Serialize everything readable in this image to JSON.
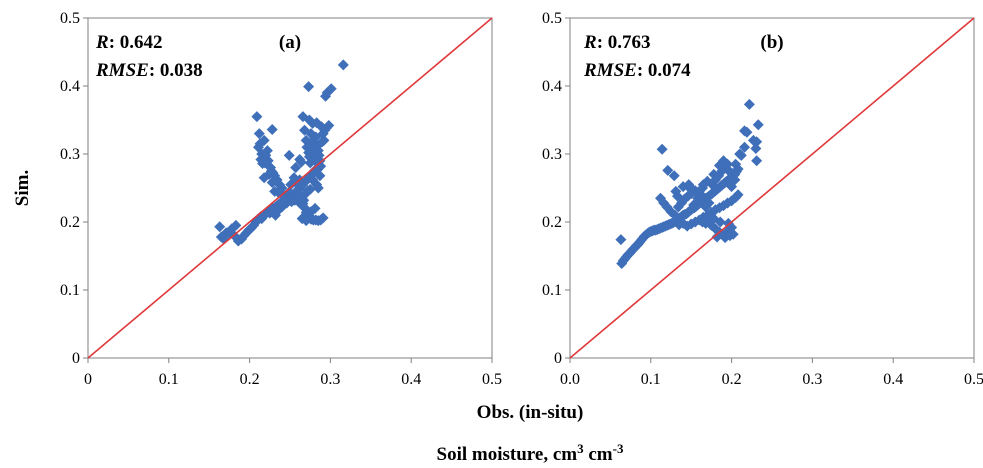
{
  "figure": {
    "y_axis_label": "Sim.",
    "x_axis_label": "Obs. (in-situ)",
    "caption": {
      "prefix": "Soil moisture, cm",
      "exp1": "3",
      "mid": " cm",
      "exp2": "-3"
    }
  },
  "colors": {
    "marker": "#3f6fb9",
    "one_to_one_line": "#e0393b",
    "axis": "#808080"
  },
  "chart_data": [
    {
      "type": "scatter",
      "panel_label": "(a)",
      "stats": {
        "r_label": "R",
        "r_value": ": 0.642",
        "rmse_label": "RMSE",
        "rmse_value": ": 0.038"
      },
      "xlim": [
        0,
        0.5
      ],
      "ylim": [
        0,
        0.5
      ],
      "x_ticks": [
        "0",
        "0.1",
        "0.2",
        "0.3",
        "0.4",
        "0.5"
      ],
      "y_ticks": [
        "0",
        "0.1",
        "0.2",
        "0.3",
        "0.4",
        "0.5"
      ],
      "grid": false,
      "reference_line": "1:1",
      "points": [
        [
          0.163,
          0.193
        ],
        [
          0.165,
          0.178
        ],
        [
          0.168,
          0.175
        ],
        [
          0.171,
          0.184
        ],
        [
          0.175,
          0.183
        ],
        [
          0.178,
          0.19
        ],
        [
          0.181,
          0.18
        ],
        [
          0.183,
          0.195
        ],
        [
          0.186,
          0.172
        ],
        [
          0.19,
          0.175
        ],
        [
          0.193,
          0.18
        ],
        [
          0.196,
          0.184
        ],
        [
          0.199,
          0.188
        ],
        [
          0.202,
          0.191
        ],
        [
          0.205,
          0.195
        ],
        [
          0.208,
          0.2
        ],
        [
          0.211,
          0.205
        ],
        [
          0.214,
          0.208
        ],
        [
          0.217,
          0.21
        ],
        [
          0.22,
          0.212
        ],
        [
          0.223,
          0.215
        ],
        [
          0.226,
          0.218
        ],
        [
          0.229,
          0.22
        ],
        [
          0.232,
          0.222
        ],
        [
          0.235,
          0.225
        ],
        [
          0.238,
          0.228
        ],
        [
          0.241,
          0.23
        ],
        [
          0.244,
          0.233
        ],
        [
          0.247,
          0.236
        ],
        [
          0.25,
          0.238
        ],
        [
          0.253,
          0.24
        ],
        [
          0.256,
          0.243
        ],
        [
          0.259,
          0.246
        ],
        [
          0.262,
          0.25
        ],
        [
          0.265,
          0.254
        ],
        [
          0.268,
          0.258
        ],
        [
          0.271,
          0.262
        ],
        [
          0.274,
          0.266
        ],
        [
          0.277,
          0.27
        ],
        [
          0.28,
          0.275
        ],
        [
          0.215,
          0.205
        ],
        [
          0.225,
          0.213
        ],
        [
          0.232,
          0.21
        ],
        [
          0.24,
          0.222
        ],
        [
          0.246,
          0.228
        ],
        [
          0.252,
          0.23
        ],
        [
          0.258,
          0.234
        ],
        [
          0.262,
          0.228
        ],
        [
          0.268,
          0.24
        ],
        [
          0.272,
          0.246
        ],
        [
          0.243,
          0.238
        ],
        [
          0.249,
          0.244
        ],
        [
          0.256,
          0.232
        ],
        [
          0.261,
          0.238
        ],
        [
          0.267,
          0.232
        ],
        [
          0.236,
          0.218
        ],
        [
          0.209,
          0.355
        ],
        [
          0.212,
          0.33
        ],
        [
          0.213,
          0.315
        ],
        [
          0.215,
          0.3
        ],
        [
          0.216,
          0.286
        ],
        [
          0.218,
          0.32
        ],
        [
          0.22,
          0.298
        ],
        [
          0.222,
          0.305
        ],
        [
          0.223,
          0.29
        ],
        [
          0.226,
          0.28
        ],
        [
          0.227,
          0.275
        ],
        [
          0.229,
          0.272
        ],
        [
          0.231,
          0.268
        ],
        [
          0.234,
          0.262
        ],
        [
          0.237,
          0.255
        ],
        [
          0.24,
          0.25
        ],
        [
          0.211,
          0.31
        ],
        [
          0.214,
          0.292
        ],
        [
          0.219,
          0.287
        ],
        [
          0.224,
          0.27
        ],
        [
          0.231,
          0.245
        ],
        [
          0.236,
          0.243
        ],
        [
          0.228,
          0.258
        ],
        [
          0.218,
          0.265
        ],
        [
          0.228,
          0.336
        ],
        [
          0.249,
          0.298
        ],
        [
          0.257,
          0.28
        ],
        [
          0.262,
          0.292
        ],
        [
          0.264,
          0.288
        ],
        [
          0.266,
          0.355
        ],
        [
          0.268,
          0.335
        ],
        [
          0.27,
          0.32
        ],
        [
          0.271,
          0.31
        ],
        [
          0.273,
          0.302
        ],
        [
          0.274,
          0.296
        ],
        [
          0.276,
          0.33
        ],
        [
          0.277,
          0.318
        ],
        [
          0.279,
          0.305
        ],
        [
          0.28,
          0.298
        ],
        [
          0.281,
          0.29
        ],
        [
          0.282,
          0.325
        ],
        [
          0.284,
          0.312
        ],
        [
          0.285,
          0.305
        ],
        [
          0.286,
          0.298
        ],
        [
          0.287,
          0.29
        ],
        [
          0.288,
          0.282
        ],
        [
          0.289,
          0.34
        ],
        [
          0.291,
          0.33
        ],
        [
          0.292,
          0.32
        ],
        [
          0.293,
          0.335
        ],
        [
          0.295,
          0.338
        ],
        [
          0.278,
          0.345
        ],
        [
          0.274,
          0.35
        ],
        [
          0.283,
          0.346
        ],
        [
          0.29,
          0.318
        ],
        [
          0.275,
          0.287
        ],
        [
          0.264,
          0.236
        ],
        [
          0.266,
          0.227
        ],
        [
          0.268,
          0.221
        ],
        [
          0.27,
          0.214
        ],
        [
          0.272,
          0.21
        ],
        [
          0.274,
          0.207
        ],
        [
          0.276,
          0.204
        ],
        [
          0.279,
          0.203
        ],
        [
          0.282,
          0.203
        ],
        [
          0.285,
          0.202
        ],
        [
          0.288,
          0.203
        ],
        [
          0.291,
          0.206
        ],
        [
          0.265,
          0.205
        ],
        [
          0.27,
          0.202
        ],
        [
          0.276,
          0.215
        ],
        [
          0.281,
          0.22
        ],
        [
          0.294,
          0.385
        ],
        [
          0.296,
          0.39
        ],
        [
          0.301,
          0.396
        ],
        [
          0.273,
          0.399
        ],
        [
          0.316,
          0.431
        ],
        [
          0.298,
          0.342
        ],
        [
          0.255,
          0.265
        ],
        [
          0.251,
          0.255
        ],
        [
          0.284,
          0.277
        ],
        [
          0.287,
          0.268
        ],
        [
          0.278,
          0.262
        ],
        [
          0.283,
          0.255
        ],
        [
          0.275,
          0.248
        ],
        [
          0.285,
          0.25
        ],
        [
          0.262,
          0.262
        ],
        [
          0.257,
          0.258
        ]
      ]
    },
    {
      "type": "scatter",
      "panel_label": "(b)",
      "stats": {
        "r_label": "R",
        "r_value": ": 0.763",
        "rmse_label": "RMSE",
        "rmse_value": ": 0.074"
      },
      "xlim": [
        0,
        0.5
      ],
      "ylim": [
        0,
        0.5
      ],
      "x_ticks": [
        "0.0",
        "0.1",
        "0.2",
        "0.3",
        "0.4",
        "0.5"
      ],
      "y_ticks": [
        "0",
        "0.1",
        "0.2",
        "0.3",
        "0.4",
        "0.5"
      ],
      "grid": false,
      "reference_line": "1:1",
      "points": [
        [
          0.063,
          0.174
        ],
        [
          0.064,
          0.139
        ],
        [
          0.066,
          0.143
        ],
        [
          0.068,
          0.146
        ],
        [
          0.07,
          0.149
        ],
        [
          0.072,
          0.152
        ],
        [
          0.074,
          0.154
        ],
        [
          0.076,
          0.157
        ],
        [
          0.078,
          0.16
        ],
        [
          0.08,
          0.162
        ],
        [
          0.082,
          0.165
        ],
        [
          0.084,
          0.167
        ],
        [
          0.086,
          0.17
        ],
        [
          0.088,
          0.173
        ],
        [
          0.09,
          0.176
        ],
        [
          0.092,
          0.179
        ],
        [
          0.094,
          0.181
        ],
        [
          0.096,
          0.183
        ],
        [
          0.098,
          0.185
        ],
        [
          0.1,
          0.186
        ],
        [
          0.102,
          0.187
        ],
        [
          0.104,
          0.188
        ],
        [
          0.106,
          0.188
        ],
        [
          0.108,
          0.189
        ],
        [
          0.11,
          0.19
        ],
        [
          0.112,
          0.191
        ],
        [
          0.114,
          0.192
        ],
        [
          0.116,
          0.193
        ],
        [
          0.118,
          0.194
        ],
        [
          0.12,
          0.195
        ],
        [
          0.122,
          0.196
        ],
        [
          0.124,
          0.197
        ],
        [
          0.126,
          0.198
        ],
        [
          0.128,
          0.199
        ],
        [
          0.13,
          0.201
        ],
        [
          0.132,
          0.203
        ],
        [
          0.134,
          0.205
        ],
        [
          0.136,
          0.206
        ],
        [
          0.138,
          0.208
        ],
        [
          0.14,
          0.21
        ],
        [
          0.142,
          0.211
        ],
        [
          0.144,
          0.212
        ],
        [
          0.146,
          0.214
        ],
        [
          0.148,
          0.216
        ],
        [
          0.15,
          0.218
        ],
        [
          0.152,
          0.22
        ],
        [
          0.154,
          0.221
        ],
        [
          0.156,
          0.223
        ],
        [
          0.158,
          0.225
        ],
        [
          0.16,
          0.227
        ],
        [
          0.162,
          0.229
        ],
        [
          0.164,
          0.231
        ],
        [
          0.166,
          0.233
        ],
        [
          0.168,
          0.235
        ],
        [
          0.17,
          0.236
        ],
        [
          0.172,
          0.238
        ],
        [
          0.174,
          0.24
        ],
        [
          0.176,
          0.242
        ],
        [
          0.178,
          0.244
        ],
        [
          0.18,
          0.246
        ],
        [
          0.182,
          0.248
        ],
        [
          0.184,
          0.25
        ],
        [
          0.186,
          0.252
        ],
        [
          0.188,
          0.254
        ],
        [
          0.19,
          0.256
        ],
        [
          0.192,
          0.258
        ],
        [
          0.194,
          0.26
        ],
        [
          0.196,
          0.262
        ],
        [
          0.198,
          0.264
        ],
        [
          0.2,
          0.266
        ],
        [
          0.202,
          0.268
        ],
        [
          0.204,
          0.27
        ],
        [
          0.112,
          0.235
        ],
        [
          0.116,
          0.228
        ],
        [
          0.12,
          0.222
        ],
        [
          0.125,
          0.215
        ],
        [
          0.13,
          0.21
        ],
        [
          0.134,
          0.222
        ],
        [
          0.138,
          0.228
        ],
        [
          0.142,
          0.234
        ],
        [
          0.146,
          0.238
        ],
        [
          0.15,
          0.242
        ],
        [
          0.155,
          0.246
        ],
        [
          0.148,
          0.25
        ],
        [
          0.153,
          0.225
        ],
        [
          0.158,
          0.235
        ],
        [
          0.16,
          0.245
        ],
        [
          0.164,
          0.25
        ],
        [
          0.168,
          0.222
        ],
        [
          0.172,
          0.228
        ],
        [
          0.176,
          0.255
        ],
        [
          0.18,
          0.262
        ],
        [
          0.184,
          0.268
        ],
        [
          0.188,
          0.275
        ],
        [
          0.192,
          0.28
        ],
        [
          0.196,
          0.276
        ],
        [
          0.2,
          0.272
        ],
        [
          0.185,
          0.283
        ],
        [
          0.19,
          0.29
        ],
        [
          0.195,
          0.285
        ],
        [
          0.178,
          0.27
        ],
        [
          0.17,
          0.26
        ],
        [
          0.165,
          0.255
        ],
        [
          0.162,
          0.24
        ],
        [
          0.114,
          0.307
        ],
        [
          0.121,
          0.276
        ],
        [
          0.129,
          0.268
        ],
        [
          0.131,
          0.245
        ],
        [
          0.133,
          0.238
        ],
        [
          0.14,
          0.252
        ],
        [
          0.147,
          0.255
        ],
        [
          0.15,
          0.25
        ],
        [
          0.135,
          0.196
        ],
        [
          0.14,
          0.198
        ],
        [
          0.145,
          0.194
        ],
        [
          0.15,
          0.197
        ],
        [
          0.155,
          0.2
        ],
        [
          0.16,
          0.203
        ],
        [
          0.165,
          0.207
        ],
        [
          0.17,
          0.21
        ],
        [
          0.175,
          0.214
        ],
        [
          0.18,
          0.218
        ],
        [
          0.185,
          0.221
        ],
        [
          0.19,
          0.224
        ],
        [
          0.195,
          0.228
        ],
        [
          0.2,
          0.231
        ],
        [
          0.205,
          0.236
        ],
        [
          0.208,
          0.24
        ],
        [
          0.175,
          0.195
        ],
        [
          0.18,
          0.19
        ],
        [
          0.185,
          0.185
        ],
        [
          0.19,
          0.18
        ],
        [
          0.195,
          0.186
        ],
        [
          0.2,
          0.192
        ],
        [
          0.182,
          0.178
        ],
        [
          0.192,
          0.177
        ],
        [
          0.186,
          0.2
        ],
        [
          0.178,
          0.205
        ],
        [
          0.172,
          0.2
        ],
        [
          0.168,
          0.198
        ],
        [
          0.164,
          0.2
        ],
        [
          0.196,
          0.198
        ],
        [
          0.198,
          0.18
        ],
        [
          0.202,
          0.182
        ],
        [
          0.222,
          0.373
        ],
        [
          0.233,
          0.343
        ],
        [
          0.231,
          0.318
        ],
        [
          0.227,
          0.32
        ],
        [
          0.23,
          0.308
        ],
        [
          0.231,
          0.29
        ],
        [
          0.216,
          0.334
        ],
        [
          0.219,
          0.332
        ],
        [
          0.216,
          0.31
        ],
        [
          0.21,
          0.3
        ],
        [
          0.205,
          0.285
        ],
        [
          0.208,
          0.278
        ],
        [
          0.212,
          0.298
        ],
        [
          0.206,
          0.274
        ],
        [
          0.204,
          0.262
        ],
        [
          0.2,
          0.252
        ]
      ]
    }
  ]
}
